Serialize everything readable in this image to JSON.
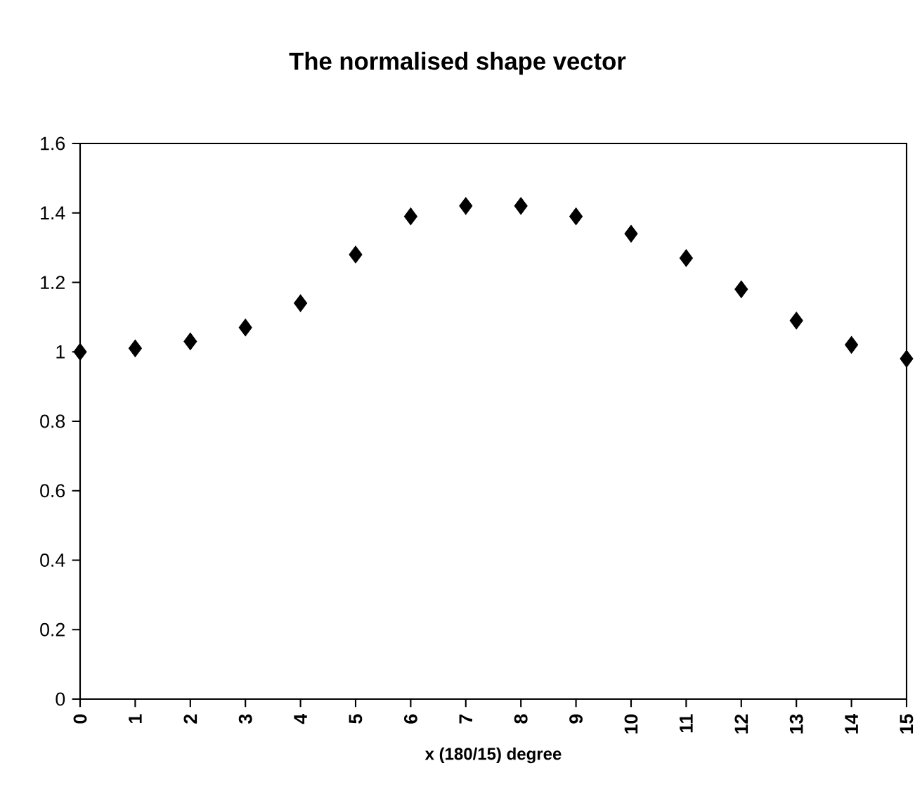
{
  "chart_data": {
    "type": "scatter",
    "title": "The normalised shape vector",
    "xlabel": "x (180/15) degree",
    "x": [
      0,
      1,
      2,
      3,
      4,
      5,
      6,
      7,
      8,
      9,
      10,
      11,
      12,
      13,
      14,
      15
    ],
    "values": [
      1.0,
      1.01,
      1.03,
      1.07,
      1.14,
      1.28,
      1.39,
      1.42,
      1.42,
      1.39,
      1.34,
      1.27,
      1.18,
      1.09,
      1.02,
      0.98
    ],
    "color": "#000000",
    "marker": "diamond",
    "xlim": [
      0,
      15
    ],
    "xticks": [
      0,
      1,
      2,
      3,
      4,
      5,
      6,
      7,
      8,
      9,
      10,
      11,
      12,
      13,
      14,
      15
    ],
    "ylim": [
      0,
      1.6
    ],
    "yticks": [
      0,
      0.2,
      0.4,
      0.6,
      0.8,
      1,
      1.2,
      1.4,
      1.6
    ]
  }
}
